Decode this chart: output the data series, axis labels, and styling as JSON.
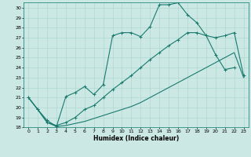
{
  "xlabel": "Humidex (Indice chaleur)",
  "bg_color": "#cbe8e4",
  "grid_color": "#b0d8d0",
  "line_color": "#1a7a6e",
  "ylim": [
    18,
    30.5
  ],
  "xlim": [
    -0.5,
    23.5
  ],
  "yticks": [
    18,
    19,
    20,
    21,
    22,
    23,
    24,
    25,
    26,
    27,
    28,
    29,
    30
  ],
  "xticks": [
    0,
    1,
    2,
    3,
    4,
    5,
    6,
    7,
    8,
    9,
    10,
    11,
    12,
    13,
    14,
    15,
    16,
    17,
    18,
    19,
    20,
    21,
    22,
    23
  ],
  "s1_x": [
    0,
    1,
    2,
    3,
    4,
    5,
    6,
    7,
    8,
    9,
    10,
    11,
    12,
    13,
    14,
    15,
    16,
    17,
    18,
    19,
    20,
    21,
    22
  ],
  "s1_y": [
    21.0,
    19.8,
    18.7,
    18.1,
    21.1,
    21.5,
    22.1,
    21.3,
    22.3,
    27.2,
    27.5,
    27.5,
    27.1,
    28.1,
    30.3,
    30.3,
    30.5,
    29.3,
    28.5,
    27.2,
    25.3,
    23.8,
    24.0
  ],
  "s2_x": [
    0,
    1,
    2,
    3,
    4,
    5,
    6,
    7,
    8,
    9,
    10,
    11,
    12,
    13,
    14,
    15,
    16,
    17,
    18,
    19,
    20,
    21,
    22,
    23
  ],
  "s2_y": [
    21.0,
    19.8,
    18.5,
    18.2,
    18.5,
    19.0,
    19.8,
    20.2,
    21.0,
    21.8,
    22.5,
    23.2,
    24.0,
    24.8,
    25.5,
    26.2,
    26.8,
    27.5,
    27.5,
    27.2,
    27.0,
    27.2,
    27.5,
    23.2
  ],
  "s3_x": [
    0,
    1,
    2,
    3,
    4,
    5,
    6,
    7,
    8,
    9,
    10,
    11,
    12,
    13,
    14,
    15,
    16,
    17,
    18,
    19,
    20,
    21,
    22,
    23
  ],
  "s3_y": [
    21.0,
    19.8,
    18.5,
    18.1,
    18.2,
    18.4,
    18.6,
    18.9,
    19.2,
    19.5,
    19.8,
    20.1,
    20.5,
    21.0,
    21.5,
    22.0,
    22.5,
    23.0,
    23.5,
    24.0,
    24.5,
    25.0,
    25.5,
    23.0
  ]
}
